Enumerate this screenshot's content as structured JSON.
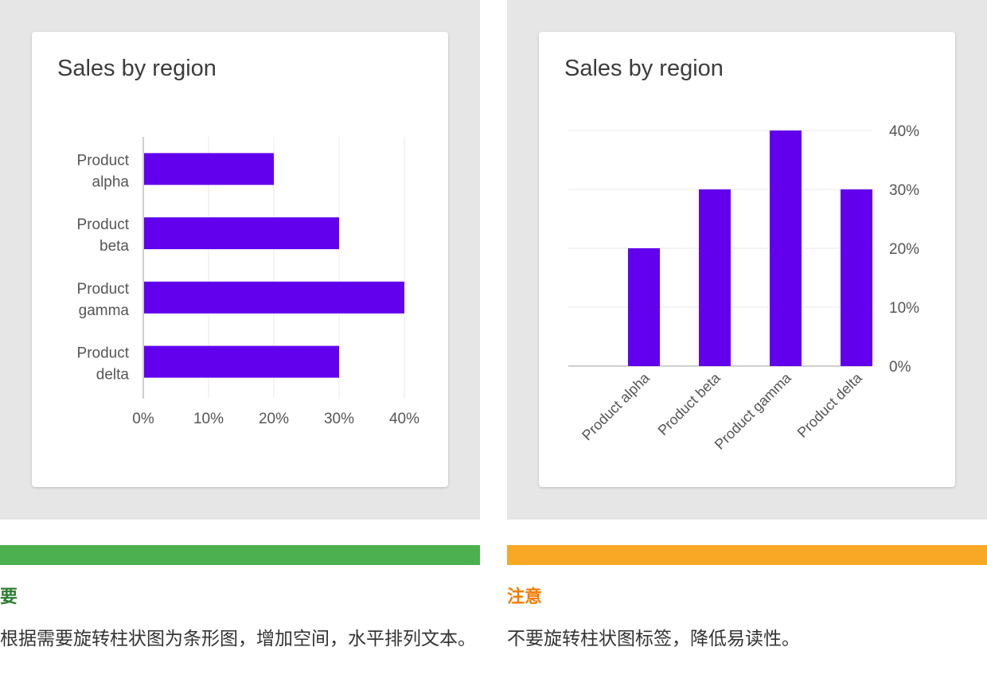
{
  "chart_data": [
    {
      "type": "bar",
      "orientation": "horizontal",
      "title": "Sales by region",
      "categories": [
        [
          "Product",
          "alpha"
        ],
        [
          "Product",
          "beta"
        ],
        [
          "Product",
          "gamma"
        ],
        [
          "Product",
          "delta"
        ]
      ],
      "values": [
        20,
        30,
        40,
        30
      ],
      "xticks": [
        "0%",
        "10%",
        "20%",
        "30%",
        "40%"
      ],
      "xlim": [
        0,
        40
      ],
      "grid": true,
      "color": "#6200ee"
    },
    {
      "type": "bar",
      "orientation": "vertical",
      "title": "Sales by region",
      "categories": [
        "Product alpha",
        "Product beta",
        "Product gamma",
        "Product delta"
      ],
      "values": [
        20,
        30,
        40,
        30
      ],
      "yticks": [
        "0%",
        "10%",
        "20%",
        "30%",
        "40%"
      ],
      "ylim": [
        0,
        40
      ],
      "yaxis_side": "right",
      "xtick_rotation": -45,
      "grid": true,
      "color": "#6200ee"
    }
  ],
  "guidance": {
    "do": {
      "label": "要",
      "color": "#4caf50",
      "text": "根据需要旋转柱状图为条形图，增加空间，水平排列文本。"
    },
    "caution": {
      "label": "注意",
      "color": "#f9a825",
      "text": "不要旋转柱状图标签，降低易读性。"
    }
  }
}
